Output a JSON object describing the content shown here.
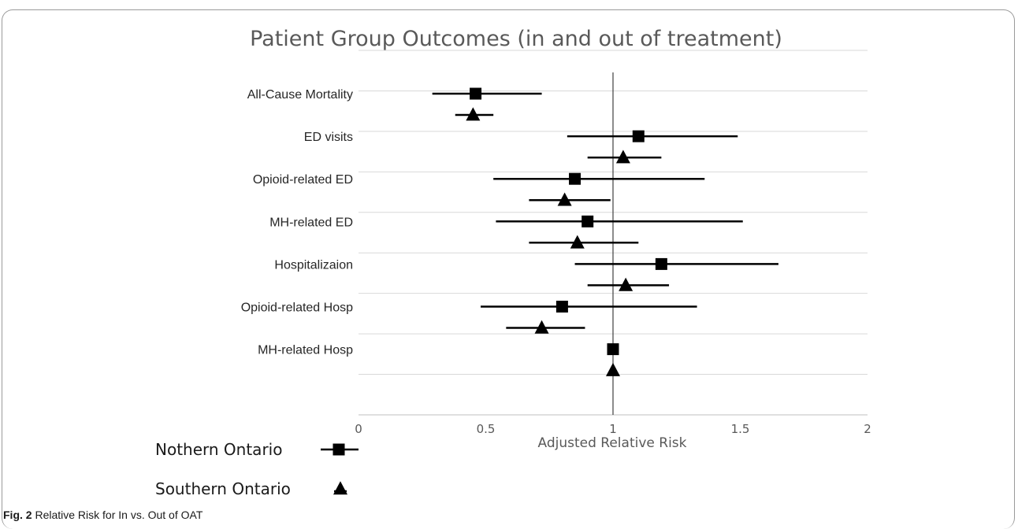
{
  "figure": {
    "caption_label": "Fig. 2",
    "caption_text": "Relative Risk for In vs. Out of OAT"
  },
  "chart_data": {
    "type": "scatter",
    "title": "Patient Group Outcomes (in and out of treatment)",
    "xlabel": "Adjusted Relative Risk",
    "ylabel": "",
    "xlim": [
      0,
      2
    ],
    "xticks": [
      "0",
      "0.5",
      "1",
      "1.5",
      "2"
    ],
    "reference_line": 1,
    "grid": "horizontal",
    "legend_position": "bottom-left",
    "categories": [
      "All-Cause Mortality",
      "ED visits",
      "Opioid-related ED",
      "MH-related ED",
      "Hospitalizaion",
      "Opioid-related Hosp",
      "MH-related Hosp"
    ],
    "series": [
      {
        "name": "Nothern Ontario",
        "marker": "square",
        "estimates": [
          0.46,
          1.1,
          0.85,
          0.9,
          1.19,
          0.8,
          1.0
        ],
        "lower": [
          0.29,
          0.82,
          0.53,
          0.54,
          0.85,
          0.48,
          null
        ],
        "upper": [
          0.72,
          1.49,
          1.36,
          1.51,
          1.65,
          1.33,
          null
        ]
      },
      {
        "name": "Southern Ontario",
        "marker": "triangle",
        "estimates": [
          0.45,
          1.04,
          0.81,
          0.86,
          1.05,
          0.72,
          1.0
        ],
        "lower": [
          0.38,
          0.9,
          0.67,
          0.67,
          0.9,
          0.58,
          null
        ],
        "upper": [
          0.53,
          1.19,
          0.99,
          1.1,
          1.22,
          0.89,
          null
        ]
      }
    ]
  }
}
